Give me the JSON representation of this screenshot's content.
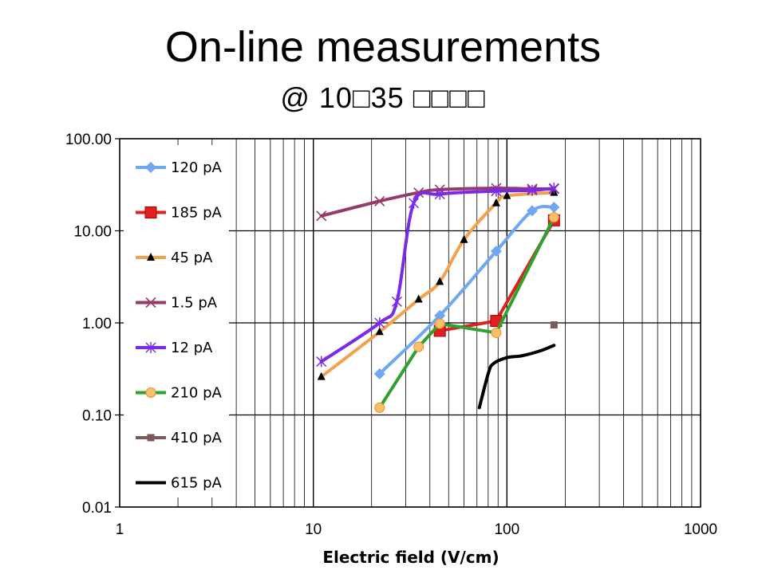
{
  "slide": {
    "title": "On-line measurements",
    "subtitle": "@ 10□35 □□□□"
  },
  "chart_data": {
    "type": "line",
    "title": "",
    "xlabel": "Electric field (V/cm)",
    "ylabel": "",
    "xscale": "log",
    "yscale": "log",
    "xlim": [
      1,
      1000
    ],
    "ylim": [
      0.01,
      100
    ],
    "x_tick_labels": [
      "1",
      "10",
      "100",
      "1000"
    ],
    "y_tick_labels": [
      "0.01",
      "0.10",
      "1.00",
      "10.00",
      "100.00"
    ],
    "grid": true,
    "legend_position": "left-inside",
    "series": [
      {
        "name": "120 pA",
        "color": "#6fa8f0",
        "marker": "diamond",
        "x": [
          22,
          45,
          88,
          135,
          175
        ],
        "y": [
          0.28,
          1.2,
          6.0,
          16.5,
          18.0
        ]
      },
      {
        "name": "185 pA",
        "color": "#e02020",
        "marker": "square",
        "x": [
          45,
          88,
          175
        ],
        "y": [
          0.82,
          1.05,
          13.0
        ]
      },
      {
        "name": "45 pA",
        "color": "#f5a04a",
        "marker": "triangle",
        "x": [
          11,
          22,
          35,
          45,
          60,
          88,
          100,
          175
        ],
        "y": [
          0.26,
          0.8,
          1.8,
          2.8,
          8.0,
          20.0,
          24.0,
          26.0
        ]
      },
      {
        "name": "1.5 pA",
        "color": "#953a6a",
        "marker": "x",
        "x": [
          11,
          22,
          35,
          45,
          88,
          135,
          175
        ],
        "y": [
          14.5,
          21.0,
          26.0,
          28.0,
          29.0,
          28.5,
          28.5
        ]
      },
      {
        "name": "12 pA",
        "color": "#7a2be8",
        "marker": "asterisk",
        "x": [
          11,
          22,
          27,
          33,
          45,
          88,
          135,
          175
        ],
        "y": [
          0.38,
          1.0,
          1.7,
          20.0,
          25.0,
          27.0,
          27.5,
          29.0
        ]
      },
      {
        "name": "210 pA",
        "color": "#2ea12e",
        "marker": "circle",
        "x": [
          22,
          35,
          45,
          88,
          175
        ],
        "y": [
          0.12,
          0.55,
          0.98,
          0.78,
          14.0
        ]
      },
      {
        "name": "410 pA",
        "color": "#7a5a5a",
        "marker": "small-square",
        "x": [
          175
        ],
        "y": [
          0.95
        ]
      },
      {
        "name": "615 pA",
        "color": "#000000",
        "marker": "none",
        "x": [
          72,
          80,
          85,
          100,
          120,
          150,
          175
        ],
        "y": [
          0.12,
          0.28,
          0.36,
          0.42,
          0.44,
          0.5,
          0.57
        ]
      }
    ]
  }
}
